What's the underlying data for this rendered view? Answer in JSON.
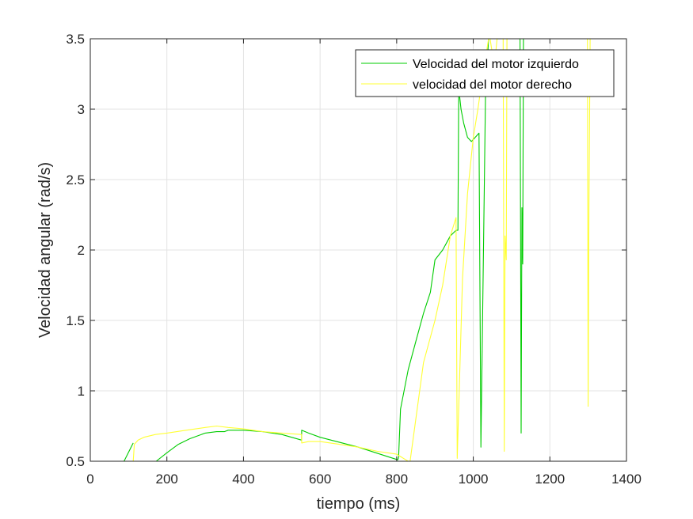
{
  "chart_data": {
    "type": "line",
    "title": "",
    "xlabel": "tiempo (ms)",
    "ylabel": "Velocidad angular (rad/s)",
    "xlim": [
      0,
      1400
    ],
    "ylim": [
      0.5,
      3.5
    ],
    "xticks": [
      0,
      200,
      400,
      600,
      800,
      1000,
      1200,
      1400
    ],
    "xtick_labels": [
      "0",
      "200",
      "400",
      "600",
      "800",
      "1000",
      "1200",
      "1400"
    ],
    "yticks": [
      0.5,
      1,
      1.5,
      2,
      2.5,
      3,
      3.5
    ],
    "ytick_labels": [
      "0.5",
      "1",
      "1.5",
      "2",
      "2.5",
      "3",
      "3.5"
    ],
    "grid": true,
    "legend_position": "top-right",
    "colors": {
      "izquierdo": "#00cc00",
      "derecho": "#ffff33",
      "axes": "#262626",
      "grid": "#e3e3e3"
    },
    "series": [
      {
        "name": "Velocidad del motor izquierdo",
        "color": "#00cc00",
        "segments": [
          [
            [
              88,
              0.5
            ],
            [
              112,
              0.63
            ]
          ],
          [
            [
              172,
              0.5
            ],
            [
              200,
              0.56
            ],
            [
              230,
              0.62
            ],
            [
              260,
              0.66
            ],
            [
              300,
              0.7
            ],
            [
              330,
              0.71
            ],
            [
              350,
              0.71
            ],
            [
              360,
              0.72
            ],
            [
              400,
              0.72
            ],
            [
              450,
              0.71
            ],
            [
              500,
              0.69
            ],
            [
              552,
              0.65
            ],
            [
              552,
              0.72
            ],
            [
              570,
              0.7
            ],
            [
              600,
              0.67
            ],
            [
              700,
              0.6
            ],
            [
              780,
              0.53
            ],
            [
              803,
              0.51
            ],
            [
              805,
              0.53
            ],
            [
              810,
              0.87
            ],
            [
              830,
              1.15
            ],
            [
              850,
              1.35
            ],
            [
              870,
              1.55
            ],
            [
              888,
              1.7
            ],
            [
              900,
              1.93
            ],
            [
              920,
              2.0
            ],
            [
              940,
              2.1
            ],
            [
              955,
              2.14
            ],
            [
              960,
              2.14
            ],
            [
              962,
              3.15
            ],
            [
              968,
              3.0
            ],
            [
              975,
              2.9
            ],
            [
              985,
              2.8
            ],
            [
              995,
              2.77
            ],
            [
              1005,
              2.8
            ],
            [
              1015,
              2.83
            ],
            [
              1020,
              0.6
            ],
            [
              1032,
              3.1
            ],
            [
              1040,
              3.5
            ]
          ],
          [
            [
              1060,
              3.5
            ],
            [
              1070,
              3.5
            ]
          ],
          [
            [
              1122,
              3.5
            ],
            [
              1125,
              0.7
            ],
            [
              1127,
              2.3
            ],
            [
              1129,
              1.9
            ],
            [
              1131,
              3.5
            ]
          ]
        ]
      },
      {
        "name": "velocidad del motor derecho",
        "color": "#ffff33",
        "segments": [
          [
            [
              112,
              0.5
            ],
            [
              115,
              0.62
            ],
            [
              125,
              0.65
            ],
            [
              140,
              0.67
            ],
            [
              170,
              0.69
            ],
            [
              200,
              0.7
            ],
            [
              250,
              0.72
            ],
            [
              300,
              0.74
            ],
            [
              330,
              0.75
            ],
            [
              360,
              0.74
            ],
            [
              400,
              0.73
            ],
            [
              450,
              0.71
            ],
            [
              500,
              0.7
            ],
            [
              552,
              0.69
            ],
            [
              552,
              0.63
            ],
            [
              570,
              0.64
            ],
            [
              600,
              0.64
            ],
            [
              650,
              0.62
            ],
            [
              700,
              0.6
            ],
            [
              750,
              0.57
            ],
            [
              800,
              0.55
            ],
            [
              830,
              0.5
            ]
          ],
          [
            [
              835,
              0.5
            ],
            [
              870,
              1.2
            ],
            [
              900,
              1.5
            ],
            [
              920,
              1.75
            ],
            [
              940,
              2.1
            ],
            [
              955,
              2.23
            ],
            [
              958,
              0.52
            ],
            [
              972,
              1.8
            ],
            [
              985,
              2.4
            ],
            [
              1000,
              2.8
            ],
            [
              1012,
              3.0
            ],
            [
              1025,
              3.25
            ],
            [
              1040,
              3.5
            ]
          ],
          [
            [
              1044,
              3.5
            ],
            [
              1055,
              3.3
            ],
            [
              1062,
              3.5
            ]
          ],
          [
            [
              1078,
              3.5
            ],
            [
              1081,
              0.57
            ],
            [
              1083,
              2.1
            ],
            [
              1086,
              1.93
            ],
            [
              1088,
              3.5
            ]
          ],
          [
            [
              1298,
              3.5
            ],
            [
              1300,
              0.89
            ],
            [
              1302,
              2.3
            ],
            [
              1305,
              3.5
            ]
          ]
        ]
      }
    ]
  }
}
